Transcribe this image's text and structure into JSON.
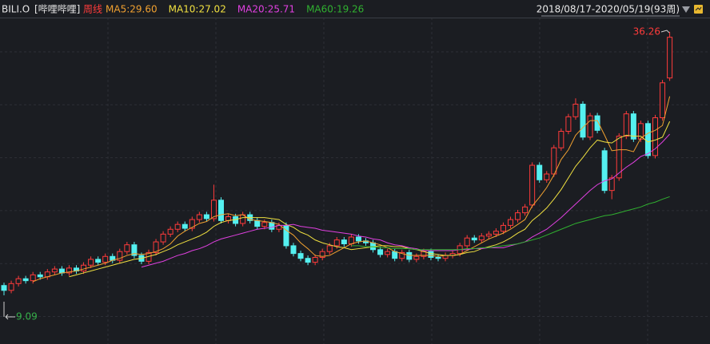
{
  "chart_data": {
    "type": "candlestick",
    "symbol": "BILI.O",
    "name": "[哔哩哔哩]",
    "period": "周线",
    "range_label": "2018/08/17-2020/05/19(93周)",
    "up_color": "#ff3b3b",
    "down_color": "#54f0f0",
    "ylim": [
      4.07,
      37.73
    ],
    "open": [
      10.1,
      9.6,
      10.3,
      10.8,
      10.6,
      11.2,
      11.0,
      11.5,
      11.8,
      11.4,
      11.9,
      11.6,
      12.2,
      12.8,
      12.5,
      13.1,
      12.7,
      13.6,
      14.3,
      13.2,
      12.6,
      13.5,
      14.6,
      15.4,
      15.9,
      16.4,
      16.0,
      16.9,
      17.4,
      17.0,
      18.9,
      16.8,
      17.2,
      16.5,
      17.4,
      16.8,
      16.2,
      16.6,
      15.9,
      16.3,
      14.2,
      13.4,
      12.9,
      12.5,
      13.0,
      13.6,
      14.2,
      14.8,
      14.4,
      15.1,
      14.7,
      14.5,
      13.8,
      13.3,
      13.6,
      12.9,
      13.5,
      12.8,
      13.1,
      13.6,
      13.0,
      12.9,
      13.2,
      13.4,
      14.2,
      15.0,
      14.8,
      15.2,
      15.4,
      15.7,
      16.3,
      16.9,
      17.6,
      18.4,
      22.5,
      21.0,
      21.6,
      24.3,
      26.0,
      27.5,
      28.8,
      25.4,
      27.6,
      24.0,
      19.9,
      21.2,
      25.5,
      27.8,
      25.2,
      26.8,
      23.5,
      27.4,
      31.5
    ],
    "high": [
      10.4,
      10.6,
      11.1,
      11.1,
      11.5,
      11.5,
      11.8,
      12.1,
      12.1,
      12.2,
      12.2,
      12.5,
      13.1,
      13.1,
      13.4,
      13.4,
      13.9,
      14.6,
      14.6,
      13.5,
      13.8,
      14.9,
      15.7,
      16.2,
      16.7,
      16.7,
      17.2,
      17.7,
      17.7,
      20.5,
      19.2,
      17.5,
      17.5,
      17.7,
      17.7,
      17.1,
      16.9,
      16.9,
      16.6,
      16.6,
      14.5,
      13.7,
      13.2,
      13.3,
      13.9,
      14.5,
      15.1,
      15.1,
      15.4,
      15.4,
      15.0,
      14.8,
      14.1,
      13.9,
      13.9,
      13.8,
      13.8,
      13.4,
      13.9,
      13.9,
      13.3,
      13.5,
      13.7,
      14.5,
      15.3,
      15.3,
      15.5,
      15.7,
      16.0,
      16.6,
      17.2,
      17.9,
      18.5,
      22.8,
      22.8,
      21.9,
      24.6,
      26.3,
      27.8,
      29.4,
      29.1,
      27.9,
      27.9,
      24.3,
      21.5,
      25.8,
      28.1,
      28.1,
      27.1,
      27.1,
      27.7,
      31.3,
      36.26
    ],
    "low": [
      9.09,
      9.3,
      10.0,
      10.3,
      10.3,
      10.7,
      10.7,
      11.2,
      11.1,
      11.1,
      11.3,
      11.3,
      11.9,
      12.2,
      12.2,
      12.4,
      12.4,
      13.3,
      12.9,
      12.3,
      12.3,
      13.2,
      14.3,
      15.1,
      15.6,
      15.7,
      15.7,
      16.6,
      16.7,
      16.7,
      16.5,
      16.5,
      16.2,
      16.2,
      16.5,
      15.9,
      15.9,
      15.6,
      15.6,
      13.9,
      13.1,
      12.6,
      12.2,
      12.2,
      12.7,
      13.3,
      13.9,
      14.1,
      14.1,
      14.4,
      14.2,
      13.5,
      13.0,
      13.0,
      12.6,
      12.6,
      12.5,
      12.5,
      12.8,
      12.7,
      12.6,
      12.6,
      12.9,
      13.1,
      13.9,
      14.5,
      14.5,
      14.9,
      15.1,
      15.4,
      16.0,
      16.6,
      17.3,
      18.1,
      20.7,
      20.7,
      21.3,
      24.0,
      25.7,
      27.2,
      25.1,
      25.1,
      25.8,
      19.6,
      19.0,
      20.9,
      25.2,
      24.9,
      24.9,
      23.2,
      23.2,
      27.1,
      31.2
    ],
    "close": [
      9.6,
      10.3,
      10.8,
      10.6,
      11.2,
      11.0,
      11.5,
      11.8,
      11.4,
      11.9,
      11.6,
      12.2,
      12.8,
      12.5,
      13.1,
      12.7,
      13.6,
      14.3,
      13.2,
      12.6,
      13.5,
      14.6,
      15.4,
      15.9,
      16.4,
      16.0,
      16.9,
      17.4,
      17.0,
      18.9,
      16.8,
      17.2,
      16.5,
      17.4,
      16.8,
      16.2,
      16.6,
      15.9,
      16.3,
      14.2,
      13.4,
      12.9,
      12.5,
      13.0,
      13.6,
      14.2,
      14.8,
      14.4,
      15.1,
      14.7,
      14.5,
      13.8,
      13.3,
      13.6,
      12.9,
      13.5,
      12.8,
      13.1,
      13.6,
      13.0,
      12.9,
      13.2,
      13.4,
      14.2,
      15.0,
      14.8,
      15.2,
      15.4,
      15.7,
      16.3,
      16.9,
      17.6,
      18.2,
      22.5,
      21.0,
      21.6,
      24.3,
      26.0,
      27.5,
      28.8,
      25.4,
      27.6,
      26.1,
      19.9,
      21.2,
      25.5,
      27.8,
      25.2,
      26.8,
      23.5,
      27.4,
      31.0,
      35.7
    ],
    "series": [
      {
        "name": "MA5:29.60",
        "color": "#f0a030",
        "values": [
          null,
          null,
          null,
          null,
          10.5,
          10.8,
          11.0,
          11.2,
          11.4,
          11.5,
          11.6,
          11.8,
          12.0,
          12.2,
          12.4,
          12.7,
          12.9,
          13.2,
          13.4,
          13.3,
          13.4,
          13.6,
          13.9,
          14.4,
          15.2,
          15.7,
          16.1,
          16.5,
          16.7,
          17.2,
          17.4,
          17.5,
          17.3,
          17.4,
          16.9,
          16.8,
          16.7,
          16.6,
          16.4,
          15.8,
          15.3,
          14.5,
          13.9,
          13.2,
          13.1,
          13.2,
          13.6,
          14.0,
          14.4,
          14.6,
          14.7,
          14.5,
          14.3,
          14.0,
          13.6,
          13.4,
          13.2,
          13.2,
          13.2,
          13.2,
          13.1,
          13.2,
          13.2,
          13.3,
          13.7,
          14.1,
          14.5,
          14.9,
          15.2,
          15.5,
          15.9,
          16.4,
          16.9,
          18.3,
          19.2,
          20.2,
          21.5,
          23.1,
          24.1,
          25.6,
          26.4,
          27.1,
          27.1,
          25.6,
          24.0,
          24.1,
          24.1,
          23.9,
          25.3,
          25.8,
          26.1,
          26.6,
          29.6
        ]
      },
      {
        "name": "MA10:27.02",
        "color": "#f0e040",
        "values": [
          null,
          null,
          null,
          null,
          null,
          null,
          null,
          null,
          null,
          11.0,
          11.2,
          11.4,
          11.6,
          11.8,
          12.0,
          12.2,
          12.4,
          12.6,
          12.8,
          12.9,
          13.1,
          13.3,
          13.6,
          13.9,
          14.3,
          14.6,
          14.9,
          15.2,
          15.6,
          16.2,
          16.6,
          16.8,
          16.9,
          17.1,
          17.1,
          17.1,
          17.1,
          17.0,
          16.9,
          16.4,
          16.1,
          15.6,
          15.3,
          14.8,
          14.5,
          14.3,
          14.1,
          14.0,
          13.8,
          13.9,
          14.0,
          14.1,
          14.2,
          14.2,
          14.1,
          14.1,
          13.9,
          13.8,
          13.6,
          13.4,
          13.3,
          13.2,
          13.2,
          13.3,
          13.5,
          13.6,
          13.9,
          14.1,
          14.3,
          14.6,
          15.0,
          15.5,
          15.9,
          16.8,
          17.4,
          18.1,
          19.0,
          20.0,
          21.2,
          22.4,
          23.3,
          24.3,
          25.1,
          24.9,
          24.8,
          25.3,
          25.6,
          25.5,
          25.5,
          24.9,
          25.1,
          25.4,
          27.02
        ]
      },
      {
        "name": "MA20:25.71",
        "color": "#e040e0",
        "values": [
          null,
          null,
          null,
          null,
          null,
          null,
          null,
          null,
          null,
          null,
          null,
          null,
          null,
          null,
          null,
          null,
          null,
          null,
          null,
          12.0,
          12.2,
          12.4,
          12.6,
          12.9,
          13.2,
          13.4,
          13.7,
          13.9,
          14.2,
          14.6,
          14.9,
          15.1,
          15.3,
          15.5,
          15.7,
          15.9,
          16.0,
          16.1,
          16.3,
          16.3,
          16.4,
          16.2,
          16.1,
          16.0,
          15.8,
          15.7,
          15.6,
          15.5,
          15.4,
          15.2,
          15.1,
          14.9,
          14.8,
          14.5,
          14.3,
          14.2,
          14.0,
          13.9,
          13.7,
          13.7,
          13.7,
          13.7,
          13.7,
          13.8,
          13.8,
          13.9,
          13.9,
          14.0,
          14.0,
          14.0,
          14.2,
          14.4,
          14.6,
          15.1,
          15.5,
          15.9,
          16.5,
          17.1,
          17.8,
          18.5,
          19.2,
          19.9,
          20.5,
          20.9,
          21.1,
          21.7,
          22.3,
          22.8,
          23.4,
          23.7,
          24.2,
          24.9,
          25.71
        ]
      },
      {
        "name": "MA60:19.26",
        "color": "#30b030",
        "values": [
          null,
          null,
          null,
          null,
          null,
          null,
          null,
          null,
          null,
          null,
          null,
          null,
          null,
          null,
          null,
          null,
          null,
          null,
          null,
          null,
          null,
          null,
          null,
          null,
          null,
          null,
          null,
          null,
          null,
          null,
          null,
          null,
          null,
          null,
          null,
          null,
          null,
          null,
          null,
          null,
          null,
          null,
          null,
          null,
          null,
          null,
          null,
          null,
          14.2,
          14.2,
          14.1,
          14.1,
          14.0,
          14.0,
          13.9,
          13.9,
          13.9,
          13.8,
          13.8,
          13.8,
          13.8,
          13.8,
          13.8,
          13.8,
          13.9,
          13.9,
          14.0,
          14.0,
          14.1,
          14.2,
          14.3,
          14.4,
          14.6,
          14.8,
          15.0,
          15.3,
          15.6,
          15.9,
          16.2,
          16.5,
          16.7,
          16.9,
          17.1,
          17.3,
          17.4,
          17.6,
          17.8,
          18.0,
          18.2,
          18.5,
          18.7,
          19.0,
          19.26
        ]
      }
    ]
  }
}
